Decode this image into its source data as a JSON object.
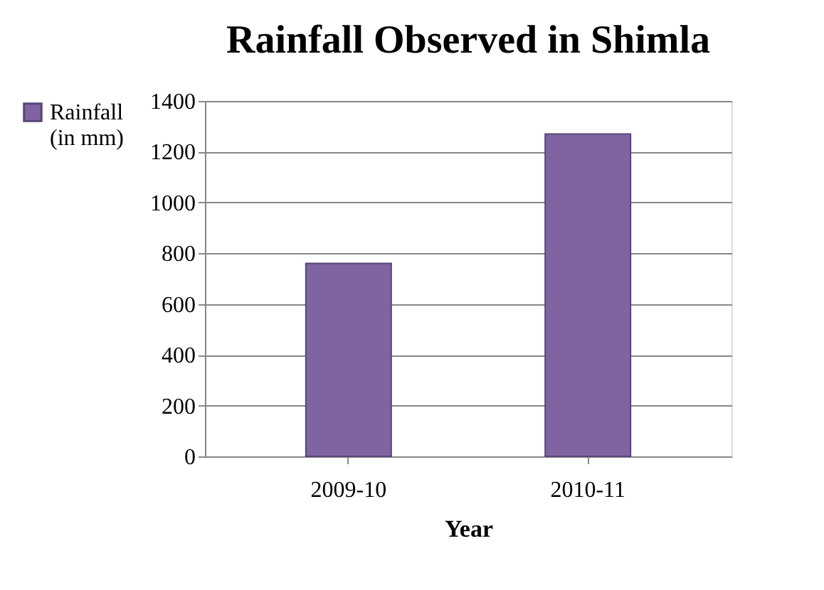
{
  "chart_data": {
    "type": "bar",
    "title": "Rainfall Observed in Shimla",
    "xlabel": "Year",
    "categories": [
      "2009-10",
      "2010-11"
    ],
    "series": [
      {
        "name": "Rainfall (in mm)",
        "color": "#8064a2",
        "values": [
          760,
          1270
        ]
      }
    ],
    "ylim": [
      0,
      1400
    ],
    "yticks": [
      0,
      200,
      400,
      600,
      800,
      1000,
      1200,
      1400
    ],
    "grid": "y",
    "legend": "left"
  }
}
